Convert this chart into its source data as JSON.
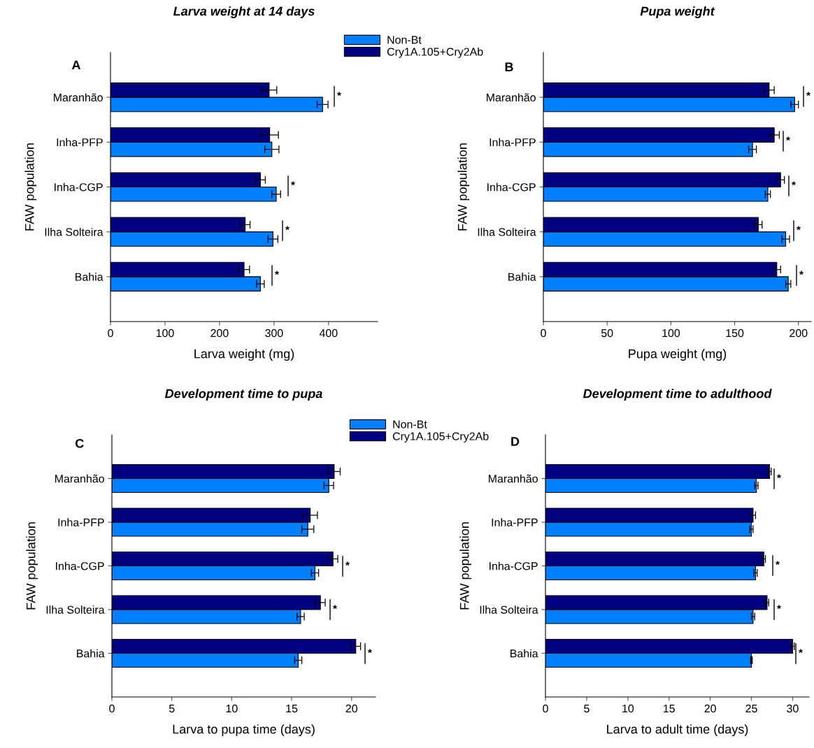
{
  "chart_data": [
    {
      "type": "bar",
      "orientation": "horizontal",
      "title": "Larva weight at 14 days",
      "xlabel": "Larva weight (mg)",
      "ylabel": "FAW population",
      "categories": [
        "Maranhão",
        "Inha-PFP",
        "Inha-CGP",
        "Ilha Solteira",
        "Bahia"
      ],
      "series": [
        {
          "name": "Non-Bt",
          "color": "#0080ff",
          "values": [
            389,
            296,
            304,
            298,
            275
          ],
          "errors": [
            10,
            13,
            8,
            9,
            7
          ]
        },
        {
          "name": "Cry1A.105+Cry2Ab",
          "color": "#000080",
          "values": [
            291,
            292,
            275,
            247,
            245
          ],
          "errors": [
            14,
            16,
            9,
            9,
            10
          ]
        }
      ],
      "xlim": [
        0,
        490
      ],
      "xticks": [
        0,
        100,
        200,
        300,
        400
      ],
      "grid": false,
      "legend": "top right",
      "annotations": [
        "A",
        "*",
        "*",
        "*",
        "*"
      ]
    },
    {
      "type": "bar",
      "orientation": "horizontal",
      "title": "Pupa weight",
      "xlabel": "Pupa weight (mg)",
      "ylabel": "FAW population",
      "categories": [
        "Maranhão",
        "Inha-PFP",
        "Inha-CGP",
        "Ilha Solteira",
        "Bahia"
      ],
      "series": [
        {
          "color": "#0080ff",
          "values": [
            197,
            164,
            176,
            190,
            192
          ],
          "errors": [
            3,
            3,
            2,
            3,
            2
          ]
        },
        {
          "color": "#000080",
          "values": [
            177,
            181,
            186,
            168.5,
            183
          ],
          "errors": [
            4,
            4,
            3,
            3,
            3
          ]
        }
      ],
      "xlim": [
        0,
        210
      ],
      "xticks": [
        0,
        50,
        100,
        150,
        200
      ],
      "grid": false,
      "legend": false,
      "annotations": [
        "B",
        "*",
        "*",
        "*",
        "*",
        "*"
      ]
    },
    {
      "type": "bar",
      "orientation": "horizontal",
      "title": "Development time to pupa",
      "xlabel": "Larva to pupa time (days)",
      "ylabel": "FAW population",
      "categories": [
        "Maranhão",
        "Inha-PFP",
        "Inha-CGP",
        "Ilha Solteira",
        "Bahia"
      ],
      "series": [
        {
          "name": "Non-Bt",
          "color": "#0080ff",
          "values": [
            18.1,
            16.35,
            16.95,
            15.75,
            15.55
          ],
          "errors": [
            0.4,
            0.5,
            0.3,
            0.3,
            0.3
          ]
        },
        {
          "name": "Cry1A.105+Cry2Ab",
          "color": "#000080",
          "values": [
            18.55,
            16.55,
            18.45,
            17.4,
            20.35
          ],
          "errors": [
            0.5,
            0.6,
            0.4,
            0.4,
            0.4
          ]
        }
      ],
      "xlim": [
        0,
        22
      ],
      "xticks": [
        0,
        5,
        10,
        15,
        20
      ],
      "grid": false,
      "legend": "top right",
      "annotations": [
        "C",
        "*",
        "*",
        "*"
      ]
    },
    {
      "type": "bar",
      "orientation": "horizontal",
      "title": "Development time to adulthood",
      "xlabel": "Larva to adult time (days)",
      "ylabel": "FAW population",
      "categories": [
        "Maranhão",
        "Inha-PFP",
        "Inha-CGP",
        "Ilha Solteira",
        "Bahia"
      ],
      "series": [
        {
          "color": "#0080ff",
          "values": [
            25.6,
            25.0,
            25.5,
            25.2,
            25.0
          ],
          "errors": [
            0.2,
            0.2,
            0.2,
            0.2,
            0.1
          ]
        },
        {
          "color": "#000080",
          "values": [
            27.2,
            25.2,
            26.5,
            26.9,
            30.0
          ],
          "errors": [
            0.2,
            0.3,
            0.2,
            0.2,
            0.2
          ]
        }
      ],
      "xlim": [
        0,
        32
      ],
      "xticks": [
        0,
        5,
        10,
        15,
        20,
        25,
        30
      ],
      "grid": false,
      "legend": false,
      "annotations": [
        "D",
        "*",
        "*",
        "*",
        "*"
      ]
    }
  ]
}
